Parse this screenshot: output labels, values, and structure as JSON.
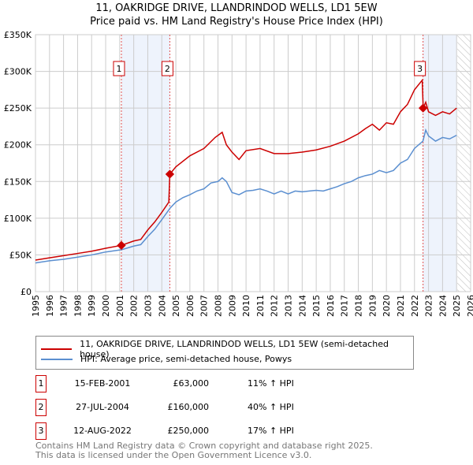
{
  "title": "11, OAKRIDGE DRIVE, LLANDRINDOD WELLS, LD1 5EW",
  "subtitle": "Price paid vs. HM Land Registry's House Price Index (HPI)",
  "colors": {
    "property": "#cc0000",
    "hpi": "#5b8fd0",
    "shade": "#eef3fc",
    "grid": "#cccccc"
  },
  "chart_data": {
    "type": "line",
    "xlim": [
      1995,
      2026
    ],
    "ylim": [
      0,
      350000
    ],
    "x_ticks": [
      "1995",
      "1996",
      "1997",
      "1998",
      "1999",
      "2000",
      "2001",
      "2002",
      "2003",
      "2004",
      "2005",
      "2006",
      "2007",
      "2008",
      "2009",
      "2010",
      "2011",
      "2012",
      "2013",
      "2014",
      "2015",
      "2016",
      "2017",
      "2018",
      "2019",
      "2020",
      "2021",
      "2022",
      "2023",
      "2024",
      "2025",
      "2026"
    ],
    "y_ticks": [
      {
        "v": 0,
        "label": "£0"
      },
      {
        "v": 50000,
        "label": "£50K"
      },
      {
        "v": 100000,
        "label": "£100K"
      },
      {
        "v": 150000,
        "label": "£150K"
      },
      {
        "v": 200000,
        "label": "£200K"
      },
      {
        "v": 250000,
        "label": "£250K"
      },
      {
        "v": 300000,
        "label": "£300K"
      },
      {
        "v": 350000,
        "label": "£350K"
      }
    ],
    "series": [
      {
        "name": "11, OAKRIDGE DRIVE, LLANDRINDOD WELLS, LD1 5EW (semi-detached house)",
        "color": "#cc0000",
        "x": [
          1995,
          1996,
          1997,
          1998,
          1999,
          2000,
          2001.12,
          2002,
          2002.5,
          2003,
          2003.5,
          2004,
          2004.5,
          2004.57,
          2005,
          2006,
          2007,
          2007.8,
          2008.3,
          2008.6,
          2009,
          2009.5,
          2010,
          2011,
          2012,
          2013,
          2014,
          2015,
          2016,
          2017,
          2018,
          2018.5,
          2019,
          2019.5,
          2020,
          2020.5,
          2021,
          2021.5,
          2022,
          2022.55,
          2022.62,
          2022.8,
          2023,
          2023.5,
          2024,
          2024.5,
          2025
        ],
        "y": [
          43000,
          46000,
          49000,
          52000,
          55000,
          59000,
          63000,
          69000,
          71000,
          84000,
          95000,
          108000,
          122000,
          160000,
          170000,
          185000,
          195000,
          210000,
          217000,
          200000,
          190000,
          180000,
          192000,
          195000,
          188000,
          188000,
          190000,
          193000,
          198000,
          205000,
          215000,
          222000,
          228000,
          220000,
          230000,
          228000,
          245000,
          255000,
          275000,
          288000,
          250000,
          258000,
          245000,
          240000,
          245000,
          242000,
          250000
        ]
      },
      {
        "name": "HPI: Average price, semi-detached house, Powys",
        "color": "#5b8fd0",
        "x": [
          1995,
          1996,
          1997,
          1998,
          1999,
          2000,
          2001.12,
          2002,
          2002.5,
          2003,
          2003.5,
          2004,
          2004.6,
          2005,
          2005.5,
          2006,
          2006.5,
          2007,
          2007.5,
          2008,
          2008.3,
          2008.6,
          2009,
          2009.5,
          2010,
          2010.5,
          2011,
          2011.5,
          2012,
          2012.5,
          2013,
          2013.5,
          2014,
          2014.5,
          2015,
          2015.5,
          2016,
          2016.5,
          2017,
          2017.5,
          2018,
          2018.5,
          2019,
          2019.5,
          2020,
          2020.5,
          2021,
          2021.5,
          2022,
          2022.6,
          2022.8,
          2023,
          2023.5,
          2024,
          2024.5,
          2025
        ],
        "y": [
          39000,
          42000,
          44000,
          47000,
          50000,
          54000,
          57000,
          62000,
          64000,
          75000,
          85000,
          98000,
          114000,
          122000,
          128000,
          132000,
          137000,
          140000,
          148000,
          150000,
          155000,
          150000,
          135000,
          132000,
          137000,
          138000,
          140000,
          137000,
          133000,
          137000,
          133000,
          137000,
          136000,
          137000,
          138000,
          137000,
          140000,
          143000,
          147000,
          150000,
          155000,
          158000,
          160000,
          165000,
          162000,
          165000,
          175000,
          180000,
          195000,
          205000,
          220000,
          212000,
          205000,
          210000,
          208000,
          213000
        ]
      }
    ],
    "sales": [
      {
        "n": "1",
        "x": 2001.12,
        "y": 63000,
        "date": "15-FEB-2001",
        "price": "£63,000",
        "hpi": "11% ↑ HPI"
      },
      {
        "n": "2",
        "x": 2004.57,
        "y": 160000,
        "date": "27-JUL-2004",
        "price": "£160,000",
        "hpi": "40% ↑ HPI"
      },
      {
        "n": "3",
        "x": 2022.61,
        "y": 250000,
        "date": "12-AUG-2022",
        "price": "£250,000",
        "hpi": "17% ↑ HPI"
      }
    ],
    "shaded_ranges": [
      [
        2001.12,
        2004.57
      ],
      [
        2022.61,
        2025.0
      ]
    ],
    "forecast_from": 2025.05
  },
  "footer": [
    "Contains HM Land Registry data © Crown copyright and database right 2025.",
    "This data is licensed under the Open Government Licence v3.0."
  ]
}
